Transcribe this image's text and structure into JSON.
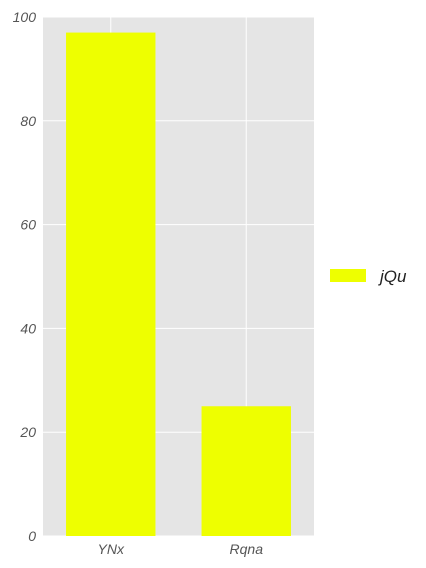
{
  "chart_data": {
    "type": "bar",
    "categories": [
      "YNx",
      "Rqna"
    ],
    "series": [
      {
        "name": "jQu",
        "values": [
          97,
          25
        ],
        "color": "#eeff00"
      }
    ],
    "title": "",
    "xlabel": "",
    "ylabel": "",
    "ylim": [
      0,
      100
    ],
    "yticks": [
      0,
      20,
      40,
      60,
      80,
      100
    ],
    "grid": true,
    "plot_background": "#e5e5e5",
    "grid_color": "#ffffff",
    "legend_position": "right"
  }
}
